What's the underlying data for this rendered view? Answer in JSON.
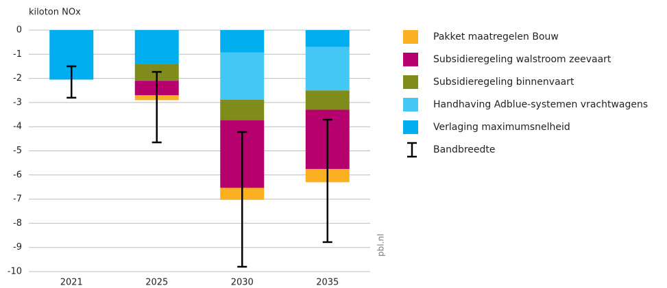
{
  "chart_data": {
    "type": "stacked_bar",
    "y_label": "kiloton NOx",
    "source": "pbl.nl",
    "categories": [
      "2021",
      "2025",
      "2030",
      "2035"
    ],
    "series": [
      {
        "name": "Pakket maatregelen Bouw",
        "color": "#fbb022",
        "values": [
          0,
          -0.2,
          -0.5,
          -0.55
        ]
      },
      {
        "name": "Subsidieregeling walstroom zeevaart",
        "color": "#b5006e",
        "values": [
          0,
          -0.6,
          -2.8,
          -2.45
        ]
      },
      {
        "name": "Subsidieregeling binnenvaart",
        "color": "#7f8c1c",
        "values": [
          0,
          -0.7,
          -0.85,
          -0.8
        ]
      },
      {
        "name": "Handhaving Adblue-systemen vrachtwagens",
        "color": "#43c7f4",
        "values": [
          0,
          0,
          -1.95,
          -1.8
        ]
      },
      {
        "name": "Verlaging maximumsnelheid",
        "color": "#00adee",
        "values": [
          -2.05,
          -1.4,
          -0.93,
          -0.7
        ]
      }
    ],
    "error_bars": {
      "name": "Bandbreedte",
      "color": "#000000",
      "high": [
        -1.5,
        -1.73,
        -4.22,
        -3.71
      ],
      "low": [
        -2.8,
        -4.65,
        -9.8,
        -8.78
      ]
    },
    "ylim": [
      -10,
      0
    ],
    "yticks": [
      0,
      -1,
      -2,
      -3,
      -4,
      -5,
      -6,
      -7,
      -8,
      -9,
      -10
    ],
    "grid": true,
    "legend": "right"
  }
}
